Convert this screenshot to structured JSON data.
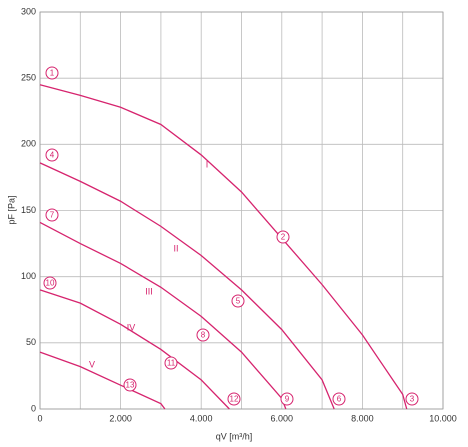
{
  "chart_data": {
    "type": "line",
    "x_label": "qV [m³/h]",
    "y_label": "pF [Pa]",
    "xlim": [
      0,
      10000
    ],
    "ylim": [
      0,
      300
    ],
    "xticks": [
      0,
      {
        "value": 2000,
        "label": "2.000"
      },
      {
        "value": 4000,
        "label": "4.000"
      },
      {
        "value": 6000,
        "label": "6.000"
      },
      {
        "value": 8000,
        "label": "8.000"
      },
      {
        "value": 10000,
        "label": "10.000"
      }
    ],
    "xminor": [
      1000,
      3000,
      5000,
      7000,
      9000
    ],
    "yticks": [
      0,
      50,
      100,
      150,
      200,
      250,
      300
    ],
    "grid": true,
    "series": [
      {
        "name": "I",
        "color": "#d6246e",
        "x": [
          0,
          1000,
          2000,
          3000,
          4000,
          5000,
          6000,
          7000,
          8000,
          9000,
          9100
        ],
        "values": [
          245,
          237,
          228,
          215,
          192,
          164,
          129,
          94,
          56,
          11,
          0
        ]
      },
      {
        "name": "II",
        "color": "#d6246e",
        "x": [
          0,
          1000,
          2000,
          3000,
          4000,
          5000,
          6000,
          7000,
          7300
        ],
        "values": [
          186,
          172,
          157,
          138,
          116,
          90,
          60,
          22,
          0
        ]
      },
      {
        "name": "III",
        "color": "#d6246e",
        "x": [
          0,
          1000,
          2000,
          3000,
          4000,
          5000,
          6000,
          6100
        ],
        "values": [
          141,
          125,
          110,
          92,
          70,
          43,
          8,
          0
        ]
      },
      {
        "name": "IV",
        "color": "#d6246e",
        "x": [
          0,
          1000,
          2000,
          3000,
          4000,
          4700
        ],
        "values": [
          90,
          80,
          64,
          45,
          22,
          0
        ]
      },
      {
        "name": "V",
        "color": "#d6246e",
        "x": [
          0,
          1000,
          2000,
          3000,
          3100
        ],
        "values": [
          43,
          32,
          18,
          4,
          0
        ]
      }
    ],
    "point_labels": [
      "1",
      "2",
      "3",
      "4",
      "5",
      "6",
      "7",
      "8",
      "9",
      "10",
      "11",
      "12",
      "13"
    ]
  }
}
